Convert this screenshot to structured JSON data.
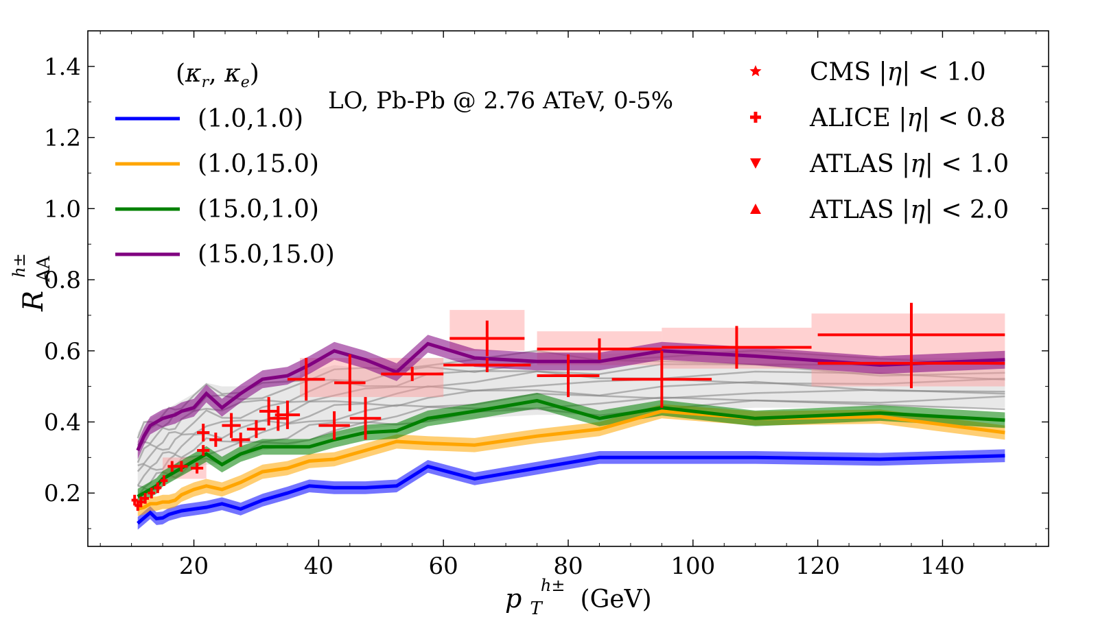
{
  "chart_data": {
    "type": "line",
    "title": "LO, Pb-Pb @ 2.76 ATeV, 0-5%",
    "xlabel": "p_T^{h±} (GeV)",
    "xlabel_main": "p",
    "xlabel_sub": "T",
    "xlabel_sup": "h±",
    "xlabel_unit": "(GeV)",
    "ylabel": "R_AA^{h±}",
    "ylabel_main": "R",
    "ylabel_sub": "AA",
    "ylabel_sup": "h±",
    "xlim": [
      3,
      157
    ],
    "ylim": [
      0.05,
      1.5
    ],
    "xticks": [
      20,
      40,
      60,
      80,
      100,
      120,
      140
    ],
    "yticks": [
      0.2,
      0.4,
      0.6,
      0.8,
      1.0,
      1.2,
      1.4
    ],
    "xtick_labels": [
      "20",
      "40",
      "60",
      "80",
      "100",
      "120",
      "140"
    ],
    "ytick_labels": [
      "0.2",
      "0.4",
      "0.6",
      "0.8",
      "1.0",
      "1.2",
      "1.4"
    ],
    "legend_title": "(κr, κe)",
    "legend_title_kappa_r": "κ",
    "legend_title_sub_r": "r",
    "legend_title_kappa_e": "κ",
    "legend_title_sub_e": "e",
    "x": [
      11,
      12,
      13,
      14,
      15,
      16,
      17,
      18,
      20,
      22,
      24.5,
      27.5,
      31,
      35,
      38.5,
      42.5,
      47.5,
      52.5,
      57.5,
      65,
      75,
      85,
      95,
      110,
      130,
      150
    ],
    "series": [
      {
        "name": "(1.0,1.0)",
        "color": "#0000ff",
        "values": [
          0.115,
          0.13,
          0.145,
          0.128,
          0.13,
          0.14,
          0.145,
          0.15,
          0.155,
          0.16,
          0.17,
          0.155,
          0.18,
          0.2,
          0.22,
          0.215,
          0.215,
          0.22,
          0.275,
          0.24,
          0.27,
          0.3,
          0.3,
          0.3,
          0.295,
          0.305
        ],
        "band": 0.018
      },
      {
        "name": "(1.0,15.0)",
        "color": "#ffa500",
        "values": [
          0.155,
          0.16,
          0.17,
          0.17,
          0.175,
          0.175,
          0.18,
          0.195,
          0.21,
          0.22,
          0.21,
          0.23,
          0.26,
          0.27,
          0.29,
          0.295,
          0.32,
          0.345,
          0.34,
          0.335,
          0.36,
          0.38,
          0.43,
          0.41,
          0.415,
          0.37
        ],
        "band": 0.02
      },
      {
        "name": "(15.0,1.0)",
        "color": "#008000",
        "values": [
          0.19,
          0.2,
          0.21,
          0.22,
          0.24,
          0.25,
          0.26,
          0.27,
          0.29,
          0.31,
          0.28,
          0.31,
          0.33,
          0.33,
          0.33,
          0.35,
          0.37,
          0.375,
          0.41,
          0.43,
          0.46,
          0.41,
          0.44,
          0.41,
          0.425,
          0.405
        ],
        "band": 0.022
      },
      {
        "name": "(15.0,15.0)",
        "color": "#800080",
        "values": [
          0.32,
          0.36,
          0.39,
          0.4,
          0.41,
          0.415,
          0.42,
          0.43,
          0.44,
          0.48,
          0.44,
          0.48,
          0.52,
          0.53,
          0.56,
          0.6,
          0.575,
          0.54,
          0.62,
          0.58,
          0.57,
          0.57,
          0.6,
          0.585,
          0.56,
          0.575
        ],
        "band": 0.025
      }
    ],
    "gray_band": {
      "color": "#808080",
      "lower": [
        0.18,
        0.19,
        0.2,
        0.21,
        0.22,
        0.23,
        0.24,
        0.25,
        0.27,
        0.28,
        0.28,
        0.3,
        0.32,
        0.33,
        0.35,
        0.36,
        0.38,
        0.39,
        0.4,
        0.41,
        0.42,
        0.42,
        0.43,
        0.44,
        0.44,
        0.44
      ],
      "upper": [
        0.37,
        0.4,
        0.41,
        0.42,
        0.43,
        0.44,
        0.45,
        0.46,
        0.48,
        0.51,
        0.5,
        0.5,
        0.51,
        0.52,
        0.54,
        0.56,
        0.55,
        0.56,
        0.58,
        0.58,
        0.6,
        0.59,
        0.6,
        0.6,
        0.58,
        0.58
      ]
    },
    "data_legend": [
      {
        "name": "CMS |η| < 1.0",
        "marker": "star",
        "color": "#ff0000",
        "prefix": "CMS |",
        "eta": "η",
        "suffix": "| < 1.0"
      },
      {
        "name": "ALICE |η| < 0.8",
        "marker": "plus",
        "color": "#ff0000",
        "prefix": "ALICE |",
        "eta": "η",
        "suffix": "| < 0.8"
      },
      {
        "name": "ATLAS |η| < 1.0",
        "marker": "triangle-down",
        "color": "#ff0000",
        "prefix": "ATLAS |",
        "eta": "η",
        "suffix": "| < 1.0"
      },
      {
        "name": "ATLAS |η| < 2.0",
        "marker": "triangle-up",
        "color": "#ff0000",
        "prefix": "ATLAS |",
        "eta": "η",
        "suffix": "| < 2.0"
      }
    ],
    "data_points": [
      {
        "x": 10.5,
        "y": 0.18,
        "xerr": 0.5,
        "yerr": 0.015
      },
      {
        "x": 11.0,
        "y": 0.165,
        "xerr": 0.5,
        "yerr": 0.015
      },
      {
        "x": 11.5,
        "y": 0.175,
        "xerr": 0.5,
        "yerr": 0.015
      },
      {
        "x": 12.2,
        "y": 0.185,
        "xerr": 0.6,
        "yerr": 0.015
      },
      {
        "x": 13.2,
        "y": 0.2,
        "xerr": 0.6,
        "yerr": 0.015
      },
      {
        "x": 14.2,
        "y": 0.215,
        "xerr": 0.6,
        "yerr": 0.015
      },
      {
        "x": 15.2,
        "y": 0.235,
        "xerr": 0.6,
        "yerr": 0.015
      },
      {
        "x": 16.5,
        "y": 0.275,
        "xerr": 0.7,
        "yerr": 0.015
      },
      {
        "x": 18.0,
        "y": 0.275,
        "xerr": 1.0,
        "yerr": 0.015
      },
      {
        "x": 20.5,
        "y": 0.27,
        "xerr": 1.0,
        "yerr": 0.015
      },
      {
        "x": 21.5,
        "y": 0.37,
        "xerr": 1.0,
        "yerr": 0.025
      },
      {
        "x": 21.5,
        "y": 0.32,
        "xerr": 1.0,
        "yerr": 0.015
      },
      {
        "x": 23.5,
        "y": 0.35,
        "xerr": 1.0,
        "yerr": 0.02
      },
      {
        "x": 26.0,
        "y": 0.39,
        "xerr": 1.5,
        "yerr": 0.035
      },
      {
        "x": 27.5,
        "y": 0.35,
        "xerr": 1.5,
        "yerr": 0.02
      },
      {
        "x": 30.0,
        "y": 0.38,
        "xerr": 1.5,
        "yerr": 0.025
      },
      {
        "x": 32.0,
        "y": 0.43,
        "xerr": 1.5,
        "yerr": 0.04
      },
      {
        "x": 33.5,
        "y": 0.41,
        "xerr": 1.5,
        "yerr": 0.035
      },
      {
        "x": 35.0,
        "y": 0.42,
        "xerr": 2.0,
        "yerr": 0.04
      },
      {
        "x": 38.0,
        "y": 0.52,
        "xerr": 3.0,
        "yerr": 0.06
      },
      {
        "x": 42.5,
        "y": 0.39,
        "xerr": 2.5,
        "yerr": 0.04
      },
      {
        "x": 45.0,
        "y": 0.51,
        "xerr": 2.5,
        "yerr": 0.08
      },
      {
        "x": 47.5,
        "y": 0.41,
        "xerr": 2.5,
        "yerr": 0.06
      },
      {
        "x": 55.0,
        "y": 0.535,
        "xerr": 5.0,
        "yerr": 0.02
      },
      {
        "x": 67.0,
        "y": 0.635,
        "xerr": 6.0,
        "yerr": 0.05
      },
      {
        "x": 67.0,
        "y": 0.56,
        "xerr": 7.0,
        "yerr": 0.02
      },
      {
        "x": 80.0,
        "y": 0.53,
        "xerr": 5.0,
        "yerr": 0.06
      },
      {
        "x": 85.0,
        "y": 0.605,
        "xerr": 10.0,
        "yerr": 0.03
      },
      {
        "x": 95.0,
        "y": 0.52,
        "xerr": 8.0,
        "yerr": 0.08
      },
      {
        "x": 107.0,
        "y": 0.61,
        "xerr": 12.0,
        "yerr": 0.06
      },
      {
        "x": 135.0,
        "y": 0.645,
        "xerr": 15.0,
        "yerr": 0.09
      },
      {
        "x": 135.0,
        "y": 0.565,
        "xerr": 15.0,
        "yerr": 0.07
      }
    ],
    "sys_boxes": [
      {
        "x0": 61,
        "x1": 73,
        "y0": 0.6,
        "y1": 0.715
      },
      {
        "x0": 75,
        "x1": 95,
        "y0": 0.56,
        "y1": 0.655
      },
      {
        "x0": 95,
        "x1": 119,
        "y0": 0.55,
        "y1": 0.665
      },
      {
        "x0": 119,
        "x1": 150,
        "y0": 0.5,
        "y1": 0.705
      },
      {
        "x0": 37,
        "x1": 60,
        "y0": 0.47,
        "y1": 0.58
      },
      {
        "x0": 15,
        "x1": 22,
        "y0": 0.24,
        "y1": 0.3
      }
    ]
  }
}
